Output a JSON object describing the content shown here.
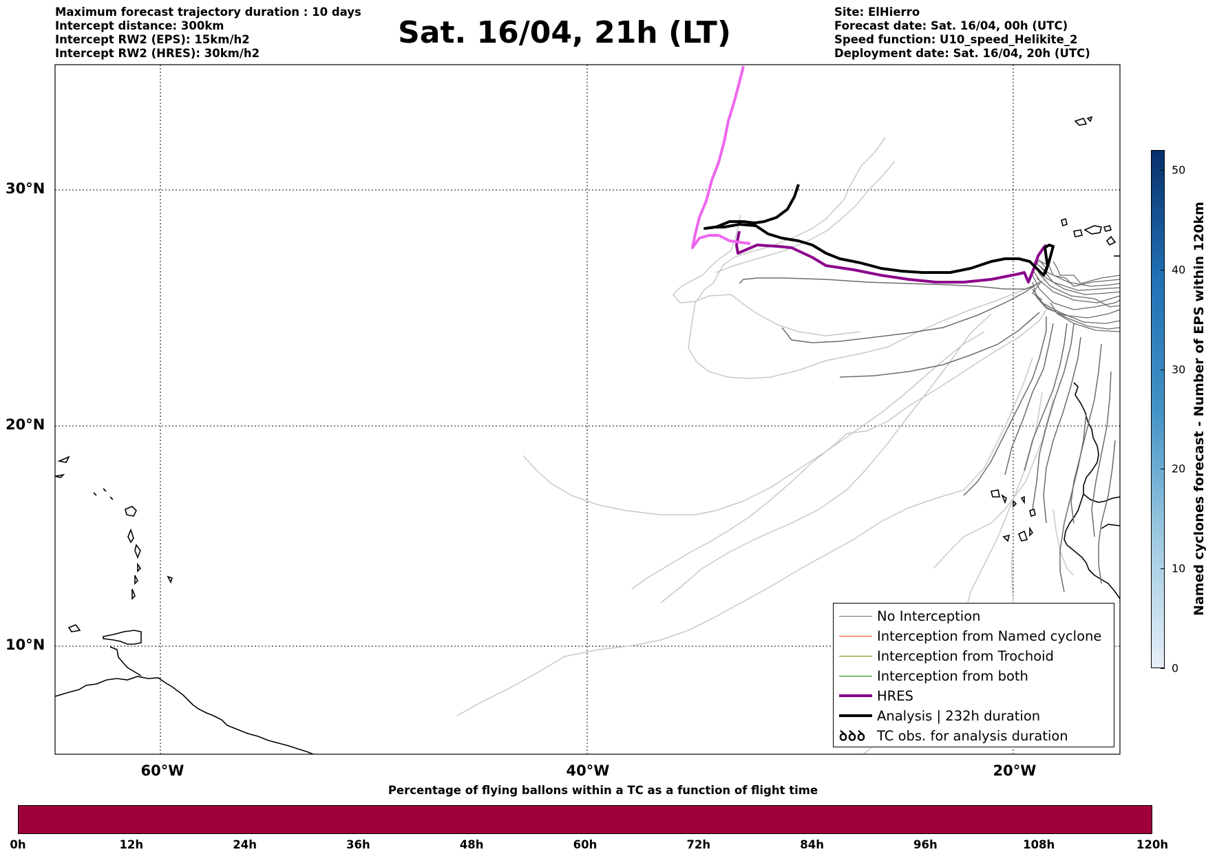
{
  "header": {
    "left_lines": [
      "Maximum forecast trajectory duration : 10 days",
      "Intercept distance: 300km",
      "Intercept RW2 (EPS):  15km/h2",
      "Intercept RW2 (HRES): 30km/h2"
    ],
    "title": "Sat. 16/04, 21h (LT)",
    "right_lines": [
      "Site: ElHierro",
      "Forecast date: Sat. 16/04, 00h (UTC)",
      "Speed function: U10_speed_Helikite_2",
      "Deployment date: Sat. 16/04, 20h (UTC)"
    ]
  },
  "map": {
    "lat_labels": [
      "30°N",
      "20°N",
      "10°N"
    ],
    "lon_labels": [
      "60°W",
      "40°W",
      "20°W"
    ],
    "colors": {
      "no_interception": "#6b6b6b",
      "no_interception_light": "#c8c8c8",
      "named_cyclone": "#ff4500",
      "trochoid": "#808000",
      "both": "#008000",
      "hres": "#8b008b",
      "hres_future": "#ee66ee",
      "analysis": "#000000"
    }
  },
  "legend": {
    "items": [
      {
        "label": "No Interception",
        "color": "#6b6b6b",
        "width": 1
      },
      {
        "label": "Interception from Named cyclone",
        "color": "#ff4500",
        "width": 1
      },
      {
        "label": "Interception from Trochoid",
        "color": "#808000",
        "width": 1
      },
      {
        "label": "Interception from both",
        "color": "#008000",
        "width": 1
      },
      {
        "label": "HRES",
        "color": "#8b008b",
        "width": 4
      },
      {
        "label": "Analysis | 232h duration",
        "color": "#000000",
        "width": 4
      }
    ],
    "tc_symbol": "ꝺꝺꝺ",
    "tc_label": "TC obs. for analysis duration"
  },
  "bottom_colorbar": {
    "caption": "Percentage of flying ballons within a TC as a function of flight time",
    "color": "#9e003a",
    "ticks": [
      "0h",
      "12h",
      "24h",
      "36h",
      "48h",
      "60h",
      "72h",
      "84h",
      "96h",
      "108h",
      "120h"
    ]
  },
  "side_colorbar": {
    "label": "Named cyclones forecast - Number of EPS within 120km",
    "ticks": [
      "0",
      "10",
      "20",
      "30",
      "40",
      "50"
    ],
    "max": 52,
    "color_low": "#e6eef8",
    "color_high": "#08306b"
  }
}
